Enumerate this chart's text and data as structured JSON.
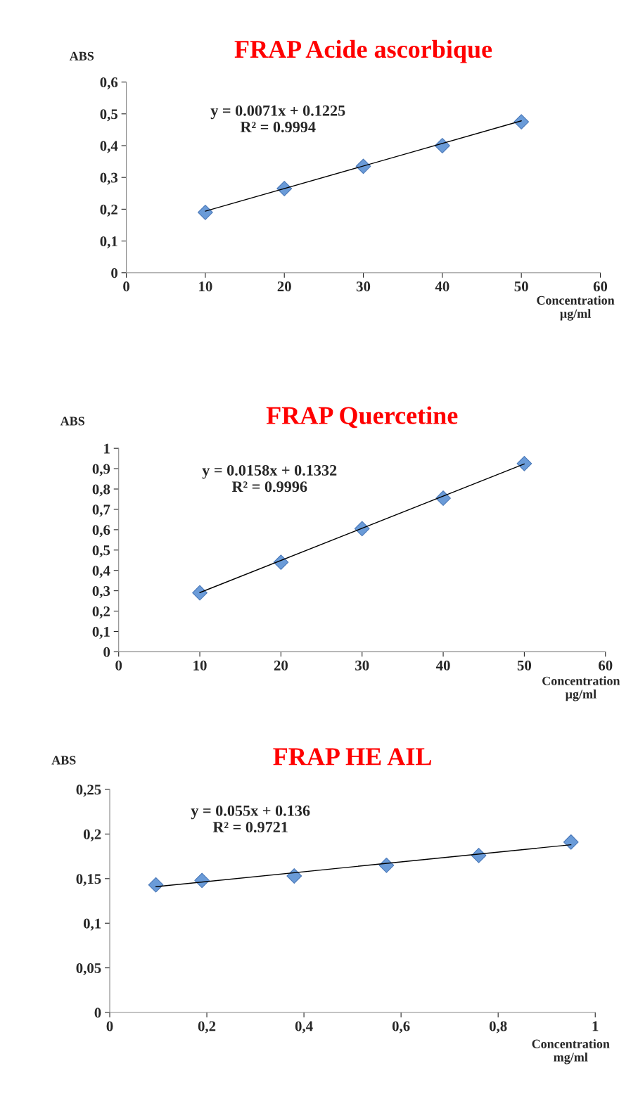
{
  "chart_data": [
    {
      "type": "scatter",
      "title": "FRAP Acide ascorbique",
      "xlabel": "Concentration\nµg/ml",
      "ylabel": "ABS",
      "annotations": [
        "y = 0.0071x + 0.1225\nR² = 0.9994"
      ],
      "series": [
        {
          "color": "#6a9bd8",
          "marker": "diamond",
          "x": [
            10,
            20,
            30,
            40,
            50
          ],
          "values": [
            0.19,
            0.265,
            0.335,
            0.4,
            0.475
          ]
        },
        {
          "type": "line",
          "color": "#000000",
          "x": [
            10,
            50
          ],
          "values": [
            0.194,
            0.478
          ]
        }
      ],
      "xlim": [
        0,
        60
      ],
      "xticks": [
        0,
        10,
        20,
        30,
        40,
        50,
        60
      ],
      "ylim": [
        0,
        0.6
      ],
      "yticks": [
        0,
        {
          "value": 0.1,
          "label": "0,1"
        },
        {
          "value": 0.2,
          "label": "0,2"
        },
        {
          "value": 0.3,
          "label": "0,3"
        },
        {
          "value": 0.4,
          "label": "0,4"
        },
        {
          "value": 0.5,
          "label": "0,5"
        },
        {
          "value": 0.6,
          "label": "0,6"
        }
      ],
      "grid": false,
      "legend": false
    },
    {
      "type": "scatter",
      "title": "FRAP Quercetine",
      "xlabel": "Concentration\nµg/ml",
      "ylabel": "ABS",
      "annotations": [
        "y = 0.0158x + 0.1332\nR² = 0.9996"
      ],
      "series": [
        {
          "color": "#6a9bd8",
          "marker": "diamond",
          "x": [
            10,
            20,
            30,
            40,
            50
          ],
          "values": [
            0.29,
            0.44,
            0.605,
            0.755,
            0.925
          ]
        },
        {
          "type": "line",
          "color": "#000000",
          "x": [
            10,
            50
          ],
          "values": [
            0.291,
            0.923
          ]
        }
      ],
      "xlim": [
        0,
        60
      ],
      "xticks": [
        0,
        10,
        20,
        30,
        40,
        50,
        60
      ],
      "ylim": [
        0,
        1
      ],
      "yticks": [
        0,
        {
          "value": 0.1,
          "label": "0,1"
        },
        {
          "value": 0.2,
          "label": "0,2"
        },
        {
          "value": 0.3,
          "label": "0,3"
        },
        {
          "value": 0.4,
          "label": "0,4"
        },
        {
          "value": 0.5,
          "label": "0,5"
        },
        {
          "value": 0.6,
          "label": "0,6"
        },
        {
          "value": 0.7,
          "label": "0,7"
        },
        {
          "value": 0.8,
          "label": "0,8"
        },
        {
          "value": 0.9,
          "label": "0,9"
        },
        1
      ],
      "grid": false,
      "legend": false
    },
    {
      "type": "scatter",
      "title": "FRAP HE AIL",
      "xlabel": "Concentration\nmg/ml",
      "ylabel": "ABS",
      "annotations": [
        "y = 0.055x + 0.136\nR² = 0.9721"
      ],
      "series": [
        {
          "color": "#6a9bd8",
          "marker": "diamond",
          "x": [
            0.095,
            0.19,
            0.38,
            0.57,
            0.76,
            0.95
          ],
          "values": [
            0.143,
            0.148,
            0.153,
            0.165,
            0.176,
            0.191
          ]
        },
        {
          "type": "line",
          "color": "#000000",
          "x": [
            0.095,
            0.95
          ],
          "values": [
            0.141,
            0.188
          ]
        }
      ],
      "xlim": [
        0,
        1
      ],
      "xticks": [
        0,
        {
          "value": 0.2,
          "label": "0,2"
        },
        {
          "value": 0.4,
          "label": "0,4"
        },
        {
          "value": 0.6,
          "label": "0,6"
        },
        {
          "value": 0.8,
          "label": "0,8"
        },
        1
      ],
      "ylim": [
        0,
        0.25
      ],
      "yticks": [
        0,
        {
          "value": 0.05,
          "label": "0,05"
        },
        {
          "value": 0.1,
          "label": "0,1"
        },
        {
          "value": 0.15,
          "label": "0,15"
        },
        {
          "value": 0.2,
          "label": "0,2"
        },
        {
          "value": 0.25,
          "label": "0,25"
        }
      ],
      "grid": false,
      "legend": false
    }
  ]
}
